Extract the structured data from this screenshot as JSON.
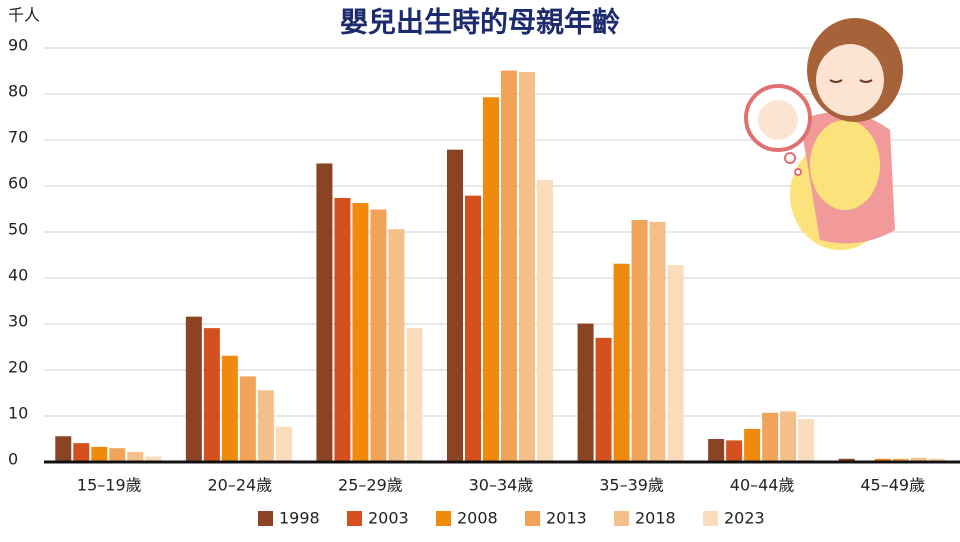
{
  "chart_data": {
    "type": "bar",
    "title": "嬰兒出生時的母親年齡",
    "y_unit": "千人",
    "categories": [
      "15–19歲",
      "20–24歲",
      "25–29歲",
      "30–34歲",
      "35–39歲",
      "40–44歲",
      "45–49歲"
    ],
    "series": [
      {
        "name": "1998",
        "color": "#8b4423",
        "values": [
          5.6,
          31.6,
          64.9,
          67.9,
          30.1,
          5.0,
          0.7
        ]
      },
      {
        "name": "2003",
        "color": "#d4501e",
        "values": [
          4.1,
          29.1,
          57.4,
          57.9,
          27.0,
          4.7,
          0.2
        ]
      },
      {
        "name": "2008",
        "color": "#ef8a0c",
        "values": [
          3.3,
          23.1,
          56.3,
          79.3,
          43.1,
          7.2,
          0.7
        ]
      },
      {
        "name": "2013",
        "color": "#f2a35a",
        "values": [
          3.0,
          18.6,
          54.9,
          85.1,
          52.6,
          10.7,
          0.7
        ]
      },
      {
        "name": "2018",
        "color": "#f5bf8a",
        "values": [
          2.2,
          15.6,
          50.6,
          84.8,
          52.2,
          11.0,
          0.9
        ]
      },
      {
        "name": "2023",
        "color": "#f9dcbc",
        "values": [
          1.2,
          7.7,
          29.1,
          61.3,
          42.8,
          9.3,
          0.8
        ]
      }
    ],
    "ylim": [
      0,
      90
    ],
    "yticks": [
      0,
      10,
      20,
      30,
      40,
      50,
      60,
      70,
      80,
      90
    ],
    "grid": true
  }
}
